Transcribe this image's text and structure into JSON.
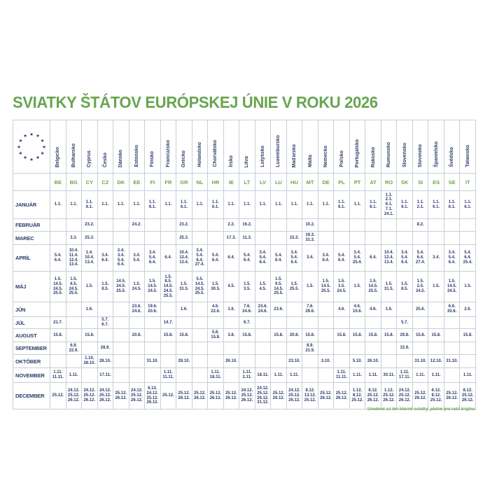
{
  "title": "SVIATKY ŠTÁTOV EURÓPSKEJ ÚNIE V ROKU 2026",
  "footer_note": "Uvedené sú len hlavné sviatky, platné pre celú krajinu.",
  "star_glyph": "★",
  "colors": {
    "green": "#69a550",
    "navy": "#2b3d68",
    "grid": "#c9cdd4"
  },
  "countries": [
    {
      "name": "Belgicko",
      "code": "BE"
    },
    {
      "name": "Bulharsko",
      "code": "BG"
    },
    {
      "name": "Cyprus",
      "code": "CY"
    },
    {
      "name": "Česko",
      "code": "CZ"
    },
    {
      "name": "Dánsko",
      "code": "DK"
    },
    {
      "name": "Estónsko",
      "code": "EE"
    },
    {
      "name": "Fínsko",
      "code": "FI"
    },
    {
      "name": "Francúzsko",
      "code": "FR"
    },
    {
      "name": "Grécko",
      "code": "GR"
    },
    {
      "name": "Holandsko",
      "code": "NL"
    },
    {
      "name": "Chorvátsko",
      "code": "HR"
    },
    {
      "name": "Írsko",
      "code": "IE"
    },
    {
      "name": "Litva",
      "code": "LT"
    },
    {
      "name": "Lotyšsko",
      "code": "LV"
    },
    {
      "name": "Luxembursko",
      "code": "LU"
    },
    {
      "name": "Maďarsko",
      "code": "HU"
    },
    {
      "name": "Malta",
      "code": "MT"
    },
    {
      "name": "Nemecko",
      "code": "DE"
    },
    {
      "name": "Poľsko",
      "code": "PL"
    },
    {
      "name": "Portugalsko",
      "code": "PT"
    },
    {
      "name": "Rakúsko",
      "code": "AT"
    },
    {
      "name": "Rumunsko",
      "code": "RO"
    },
    {
      "name": "Slovensko",
      "code": "SK"
    },
    {
      "name": "Slovinsko",
      "code": "SI"
    },
    {
      "name": "Španielsko",
      "code": "ES"
    },
    {
      "name": "Švédsko",
      "code": "SE"
    },
    {
      "name": "Taliansko",
      "code": "IT"
    }
  ],
  "rows": [
    {
      "month": "JANUÁR",
      "cells": [
        [
          "1.1."
        ],
        [
          "1.1."
        ],
        [
          "1.1.",
          "6.1."
        ],
        [
          "1.1."
        ],
        [
          "1.1."
        ],
        [
          "1.1."
        ],
        [
          "1.1.",
          "6.1."
        ],
        [
          "1.1."
        ],
        [
          "1.1.",
          "6.1."
        ],
        [
          "1.1."
        ],
        [
          "1.1.",
          "6.1."
        ],
        [
          "1.1."
        ],
        [
          "1.1."
        ],
        [
          "1.1."
        ],
        [
          "1.1."
        ],
        [
          "1.1."
        ],
        [
          "1.1."
        ],
        [
          "1.1."
        ],
        [
          "1.1.",
          "6.1."
        ],
        [
          "1.1."
        ],
        [
          "1.1.",
          "6.1."
        ],
        [
          "1.1.",
          "2.1.",
          "6.1.",
          "7.1.",
          "24.1."
        ],
        [
          "1.1.",
          "6.1."
        ],
        [
          "1.1.",
          "2.1."
        ],
        [
          "1.1.",
          "6.1."
        ],
        [
          "1.1.",
          "6.1."
        ],
        [
          "1.1.",
          "6.1."
        ]
      ]
    },
    {
      "month": "FEBRUÁR",
      "cells": [
        [],
        [],
        [
          "23.2."
        ],
        [],
        [],
        [
          "24.2."
        ],
        [],
        [],
        [
          "23.2."
        ],
        [],
        [],
        [
          "2.2."
        ],
        [
          "16.2."
        ],
        [],
        [],
        [],
        [
          "10.2."
        ],
        [],
        [],
        [],
        [],
        [],
        [],
        [
          "8.2."
        ],
        [],
        [],
        []
      ]
    },
    {
      "month": "MAREC",
      "cells": [
        [],
        [
          "3.3."
        ],
        [
          "25.3."
        ],
        [],
        [],
        [],
        [],
        [],
        [
          "25.3."
        ],
        [],
        [],
        [
          "17.3."
        ],
        [
          "11.3."
        ],
        [],
        [],
        [
          "15.3."
        ],
        [
          "19.3.",
          "31.3."
        ],
        [],
        [],
        [],
        [],
        [],
        [],
        [],
        [],
        [],
        []
      ]
    },
    {
      "month": "APRÍL",
      "cells": [
        [
          "5.4.",
          "6.4."
        ],
        [
          "10.4.",
          "11.4.",
          "12.4.",
          "13.4."
        ],
        [
          "1.4.",
          "10.4.",
          "13.4."
        ],
        [
          "3.4.",
          "6.4."
        ],
        [
          "2.4.",
          "3.4.",
          "5.4.",
          "6.4."
        ],
        [
          "3.4.",
          "5.4."
        ],
        [
          "3.4.",
          "5.4.",
          "6.4."
        ],
        [
          "6.4."
        ],
        [
          "10.4.",
          "12.4.",
          "13.4."
        ],
        [
          "3.4.",
          "5.4.",
          "6.4.",
          "27.4."
        ],
        [
          "5.4.",
          "6.4."
        ],
        [
          "6.4."
        ],
        [
          "5.4.",
          "6.4."
        ],
        [
          "3.4.",
          "5.4.",
          "6.4."
        ],
        [
          "5.4.",
          "6.4."
        ],
        [
          "3.4.",
          "5.4.",
          "6.4."
        ],
        [
          "3.4."
        ],
        [
          "3.4.",
          "6.4."
        ],
        [
          "5.4.",
          "6.4."
        ],
        [
          "3.4.",
          "5.4.",
          "25.4."
        ],
        [
          "6.4."
        ],
        [
          "10.4.",
          "12.4.",
          "13.4."
        ],
        [
          "3.4.",
          "5.4.",
          "6.4."
        ],
        [
          "5.4.",
          "6.4.",
          "27.4."
        ],
        [
          "3.4."
        ],
        [
          "3.4.",
          "5.4.",
          "6.4."
        ],
        [
          "5.4.",
          "6.4.",
          "25.4."
        ]
      ]
    },
    {
      "month": "MÁJ",
      "cells": [
        [
          "1.5.",
          "14.5.",
          "24.5.",
          "25.5."
        ],
        [
          "1.5.",
          "6.5.",
          "24.5.",
          "25.5."
        ],
        [
          "1.5."
        ],
        [
          "1.5.",
          "8.5."
        ],
        [
          "14.5.",
          "24.5.",
          "25.5."
        ],
        [
          "1.5.",
          "24.5."
        ],
        [
          "1.5.",
          "14.5.",
          "24.5."
        ],
        [
          "1.5.",
          "8.5.",
          "14.5.",
          "24.5.",
          "25.5."
        ],
        [
          "1.5.",
          "31.5."
        ],
        [
          "5.5.",
          "14.5.",
          "24.5.",
          "25.5."
        ],
        [
          "1.5.",
          "30.5."
        ],
        [
          "4.5."
        ],
        [
          "1.5.",
          "3.5."
        ],
        [
          "1.5.",
          "4.5."
        ],
        [
          "1.5.",
          "9.5.",
          "14.5.",
          "25.5."
        ],
        [
          "1.5.",
          "25.5."
        ],
        [
          "1.5."
        ],
        [
          "1.5.",
          "14.5.",
          "25.5."
        ],
        [
          "1.5.",
          "3.5.",
          "24.5."
        ],
        [
          "1.5."
        ],
        [
          "1.5.",
          "14.5.",
          "25.5."
        ],
        [
          "1.5.",
          "31.5."
        ],
        [
          "1.5.",
          "8.5."
        ],
        [
          "1.5.",
          "2.5.",
          "24.5."
        ],
        [
          "1.5."
        ],
        [
          "1.5.",
          "14.5.",
          "24.5."
        ],
        [
          "1.5."
        ]
      ]
    },
    {
      "month": "JÚN",
      "cells": [
        [],
        [],
        [
          "1.6."
        ],
        [],
        [],
        [
          "23.6.",
          "24.6."
        ],
        [
          "19.6.",
          "20.6."
        ],
        [],
        [
          "1.6."
        ],
        [],
        [
          "4.6.",
          "22.6."
        ],
        [
          "1.6."
        ],
        [
          "7.6.",
          "24.6."
        ],
        [
          "23.6.",
          "24.6."
        ],
        [
          "23.6."
        ],
        [],
        [
          "7.6.",
          "29.6."
        ],
        [],
        [
          "4.6."
        ],
        [
          "4.6.",
          "10.6."
        ],
        [
          "4.6."
        ],
        [
          "1.6."
        ],
        [],
        [
          "25.6."
        ],
        [],
        [
          "6.6.",
          "20.6."
        ],
        [
          "2.6."
        ]
      ]
    },
    {
      "month": "JÚL",
      "cells": [
        [
          "21.7."
        ],
        [],
        [],
        [
          "5.7.",
          "6.7."
        ],
        [],
        [],
        [],
        [
          "14.7."
        ],
        [],
        [],
        [],
        [],
        [
          "6.7."
        ],
        [],
        [],
        [],
        [],
        [],
        [],
        [],
        [],
        [],
        [
          "5.7."
        ],
        [],
        [],
        [],
        []
      ]
    },
    {
      "month": "AUGUST",
      "cells": [
        [
          "15.8."
        ],
        [],
        [
          "15.8."
        ],
        [],
        [],
        [
          "20.8."
        ],
        [],
        [
          "15.8."
        ],
        [
          "15.8."
        ],
        [],
        [
          "5.8.",
          "15.8."
        ],
        [
          "3.8."
        ],
        [
          "15.8."
        ],
        [],
        [
          "15.8."
        ],
        [
          "20.8."
        ],
        [
          "15.8."
        ],
        [],
        [
          "15.8."
        ],
        [
          "15.8."
        ],
        [
          "15.8."
        ],
        [
          "15.8."
        ],
        [
          "29.8."
        ],
        [
          "15.8."
        ],
        [
          "15.8."
        ],
        [],
        [
          "15.8."
        ]
      ]
    },
    {
      "month": "SEPTEMBER",
      "cells": [
        [],
        [
          "6.9.",
          "22.9."
        ],
        [],
        [
          "28.9."
        ],
        [],
        [],
        [],
        [],
        [],
        [],
        [],
        [],
        [],
        [],
        [],
        [],
        [
          "8.9.",
          "21.9."
        ],
        [],
        [],
        [],
        [],
        [],
        [
          "15.9."
        ],
        [],
        [],
        [],
        []
      ]
    },
    {
      "month": "OKTÓBER",
      "cells": [
        [],
        [],
        [
          "1.10.",
          "28.10."
        ],
        [
          "28.10."
        ],
        [],
        [],
        [
          "31.10."
        ],
        [],
        [
          "28.10."
        ],
        [],
        [],
        [
          "26.10."
        ],
        [],
        [],
        [],
        [
          "23.10."
        ],
        [],
        [
          "3.10."
        ],
        [],
        [
          "5.10."
        ],
        [
          "26.10."
        ],
        [],
        [],
        [
          "31.10."
        ],
        [
          "12.10."
        ],
        [
          "31.10."
        ],
        []
      ]
    },
    {
      "month": "NOVEMBER",
      "cells": [
        [
          "1.11.",
          "11.11."
        ],
        [
          "1.11."
        ],
        [],
        [
          "17.11."
        ],
        [],
        [],
        [],
        [
          "1.11.",
          "11.11."
        ],
        [],
        [],
        [
          "1.11.",
          "18.11."
        ],
        [],
        [
          "1.11.",
          "2.11."
        ],
        [
          "18.11."
        ],
        [
          "1.11."
        ],
        [
          "1.11."
        ],
        [],
        [],
        [
          "1.11.",
          "11.11."
        ],
        [
          "1.11."
        ],
        [
          "1.11."
        ],
        [
          "30.11."
        ],
        [
          "1.11.",
          "17.11."
        ],
        [
          "1.11."
        ],
        [
          "1.11."
        ],
        [],
        [
          "1.11."
        ]
      ]
    },
    {
      "month": "DECEMBER",
      "cells": [
        [
          "25.12."
        ],
        [
          "24.12.",
          "25.12.",
          "26.12."
        ],
        [
          "24.12.",
          "25.12.",
          "26.12."
        ],
        [
          "24.12.",
          "25.12.",
          "26.12."
        ],
        [
          "25.12.",
          "26.12."
        ],
        [
          "24.12.",
          "25.12.",
          "26.12."
        ],
        [
          "6.12.",
          "24.12.",
          "25.12.",
          "26.12."
        ],
        [
          "25.12."
        ],
        [
          "25.12.",
          "26.12."
        ],
        [
          "25.12.",
          "26.12."
        ],
        [
          "25.12.",
          "26.12."
        ],
        [
          "25.12.",
          "26.12."
        ],
        [
          "24.12.",
          "25.12.",
          "26.12."
        ],
        [
          "24.12.",
          "25.12.",
          "26.12.",
          "31.12."
        ],
        [
          "25.12.",
          "26.12."
        ],
        [
          "24.12.",
          "25.12.",
          "26.12."
        ],
        [
          "8.12.",
          "13.12.",
          "25.12."
        ],
        [
          "25.12.",
          "26.12."
        ],
        [
          "25.12.",
          "26.12."
        ],
        [
          "1.12.",
          "8.12.",
          "25.12."
        ],
        [
          "8.12.",
          "25.12.",
          "26.12."
        ],
        [
          "1.12.",
          "25.12.",
          "26.12."
        ],
        [
          "24.12.",
          "25.12.",
          "26.12."
        ],
        [
          "25.12.",
          "26.12."
        ],
        [
          "6.12.",
          "8.12.",
          "25.12."
        ],
        [
          "25.12.",
          "26.12."
        ],
        [
          "8.12.",
          "25.12.",
          "26.12."
        ]
      ]
    }
  ]
}
